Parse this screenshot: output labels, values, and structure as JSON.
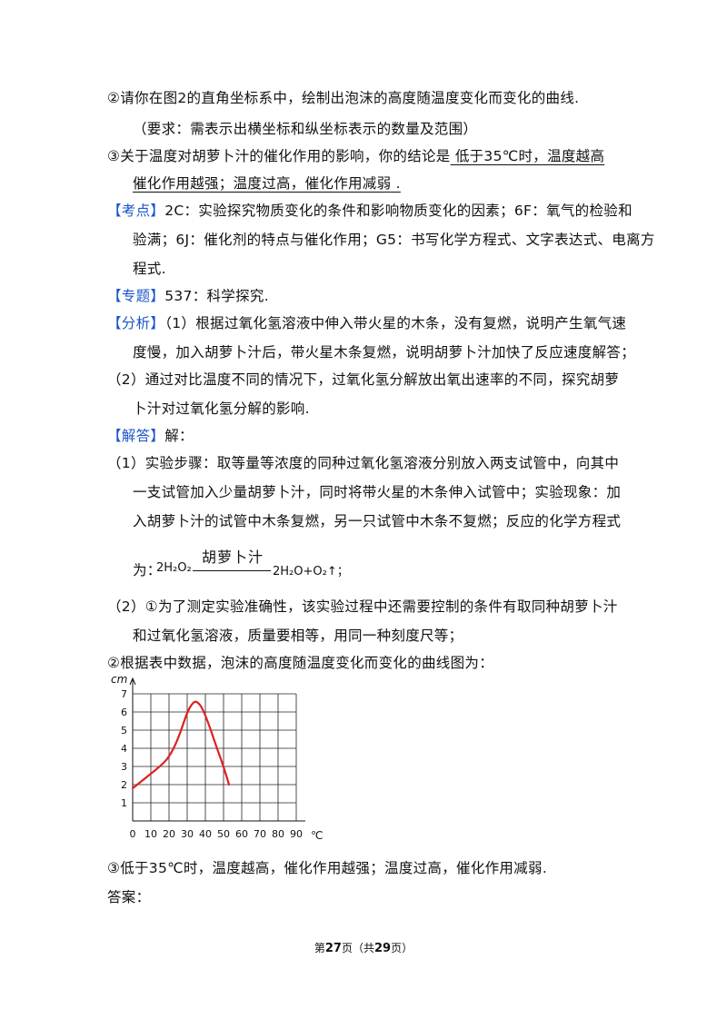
{
  "lines": {
    "l1": "②请你在图2的直角坐标系中，绘制出泡沫的高度随温度变化而变化的曲线.",
    "l2": "（要求：需表示出横坐标和纵坐标表示的数量及范围）",
    "l3_pre": "③关于温度对胡萝卜汁的催化作用的影响，你的结论是",
    "l3_answer": "  低于35℃时，温度越高",
    "l4_answer": "催化作用越强；温度过高，催化作用减弱",
    "l4_post": "  .",
    "kaodian_tag": "【考点】",
    "kaodian_1": "2C：实验探究物质变化的条件和影响物质变化的因素；6F：氧气的检验和",
    "kaodian_2": "验满；6J：催化剂的特点与催化作用；G5：书写化学方程式、文字表达式、电离方",
    "kaodian_3": "程式.",
    "zhuanti_tag": "【专题】",
    "zhuanti": "537：科学探究.",
    "fenxi_tag": "【分析】",
    "fenxi_1": "（1）根据过氧化氢溶液中伸入带火星的木条，没有复燃，说明产生氧气速",
    "fenxi_2": "度慢，加入胡萝卜汁后，带火星木条复燃，说明胡萝卜汁加快了反应速度解答；",
    "fenxi_3": "（2）通过对比温度不同的情况下，过氧化氢分解放出氧出速率的不同，探究胡萝",
    "fenxi_4": "卜汁对过氧化氢分解的影响.",
    "jieda_tag": "【解答】",
    "jieda": "解：",
    "s1_1": "（1）实验步骤：取等量等浓度的同种过氧化氢溶液分别放入两支试管中，向其中",
    "s1_2": "一支试管加入少量胡萝卜汁，同时将带火星的木条伸入试管中；实验现象：加",
    "s1_3": "入胡萝卜汁的试管中木条复燃，另一只试管中木条不复燃；反应的化学方程式",
    "s1_4": "为：",
    "s2_1": "（2）①为了测定实验准确性，该实验过程中还需要控制的条件有取同种胡萝卜汁",
    "s2_2": "和过氧化氢溶液，质量要相等，用同一种刻度尺等；",
    "s2_3": "②根据表中数据，泡沫的高度随温度变化而变化的曲线图为：",
    "s3": "③低于35℃时，温度越高，催化作用越强；温度过高，催化作用减弱.",
    "answer": "答案："
  },
  "equation": {
    "lhs": "2H₂O₂",
    "catalyst": "胡萝卜汁",
    "rhs": "2H₂O+O₂↑；"
  },
  "footer": {
    "pre": "第",
    "page": "27",
    "mid": "页（共",
    "total": "29",
    "post": "页）"
  },
  "chart_data": {
    "type": "line",
    "ylabel": "cm",
    "xlabel": "℃",
    "x_ticks": [
      "0",
      "10",
      "20",
      "30",
      "40",
      "50",
      "60",
      "70",
      "80",
      "90"
    ],
    "y_ticks": [
      "1",
      "2",
      "3",
      "4",
      "5",
      "6",
      "7"
    ],
    "xlim": [
      0,
      90
    ],
    "ylim": [
      0,
      7
    ],
    "grid": true,
    "series": [
      {
        "color": "#e02020",
        "x": [
          0,
          5,
          10,
          15,
          20,
          25,
          30,
          33,
          35,
          38,
          42,
          46,
          50,
          53
        ],
        "y": [
          1.8,
          2.2,
          2.6,
          3.0,
          3.5,
          4.5,
          6.0,
          6.5,
          6.6,
          6.3,
          5.3,
          4.1,
          3.0,
          2.0
        ]
      }
    ]
  }
}
